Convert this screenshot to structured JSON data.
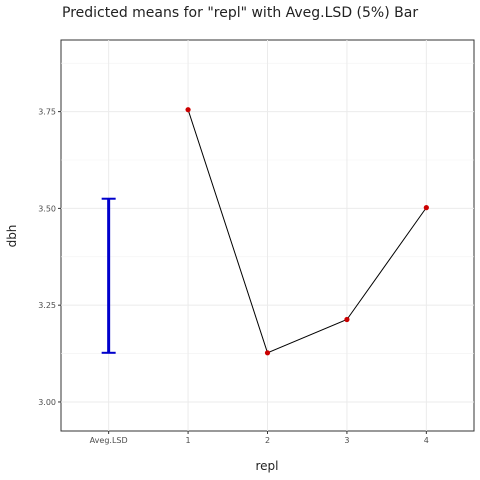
{
  "chart_data": {
    "type": "line",
    "title": "Predicted means for \"repl\" with Aveg.LSD (5%) Bar",
    "xlabel": "repl",
    "ylabel": "dbh",
    "categories": [
      "Aveg.LSD",
      "1",
      "2",
      "3",
      "4"
    ],
    "ylim": [
      2.925,
      3.935
    ],
    "yticks": [
      "3.00",
      "3.25",
      "3.50",
      "3.75"
    ],
    "ytick_values": [
      3.0,
      3.25,
      3.5,
      3.75
    ],
    "grid": true,
    "series": [
      {
        "x": [
          "1",
          "2",
          "3",
          "4"
        ],
        "values": [
          3.755,
          3.127,
          3.213,
          3.502
        ],
        "line_color": "#000000",
        "point_color": "#cc0000"
      }
    ],
    "lsd_bar": {
      "category": "Aveg.LSD",
      "low": 3.127,
      "high": 3.525,
      "color": "#0000cc"
    }
  }
}
